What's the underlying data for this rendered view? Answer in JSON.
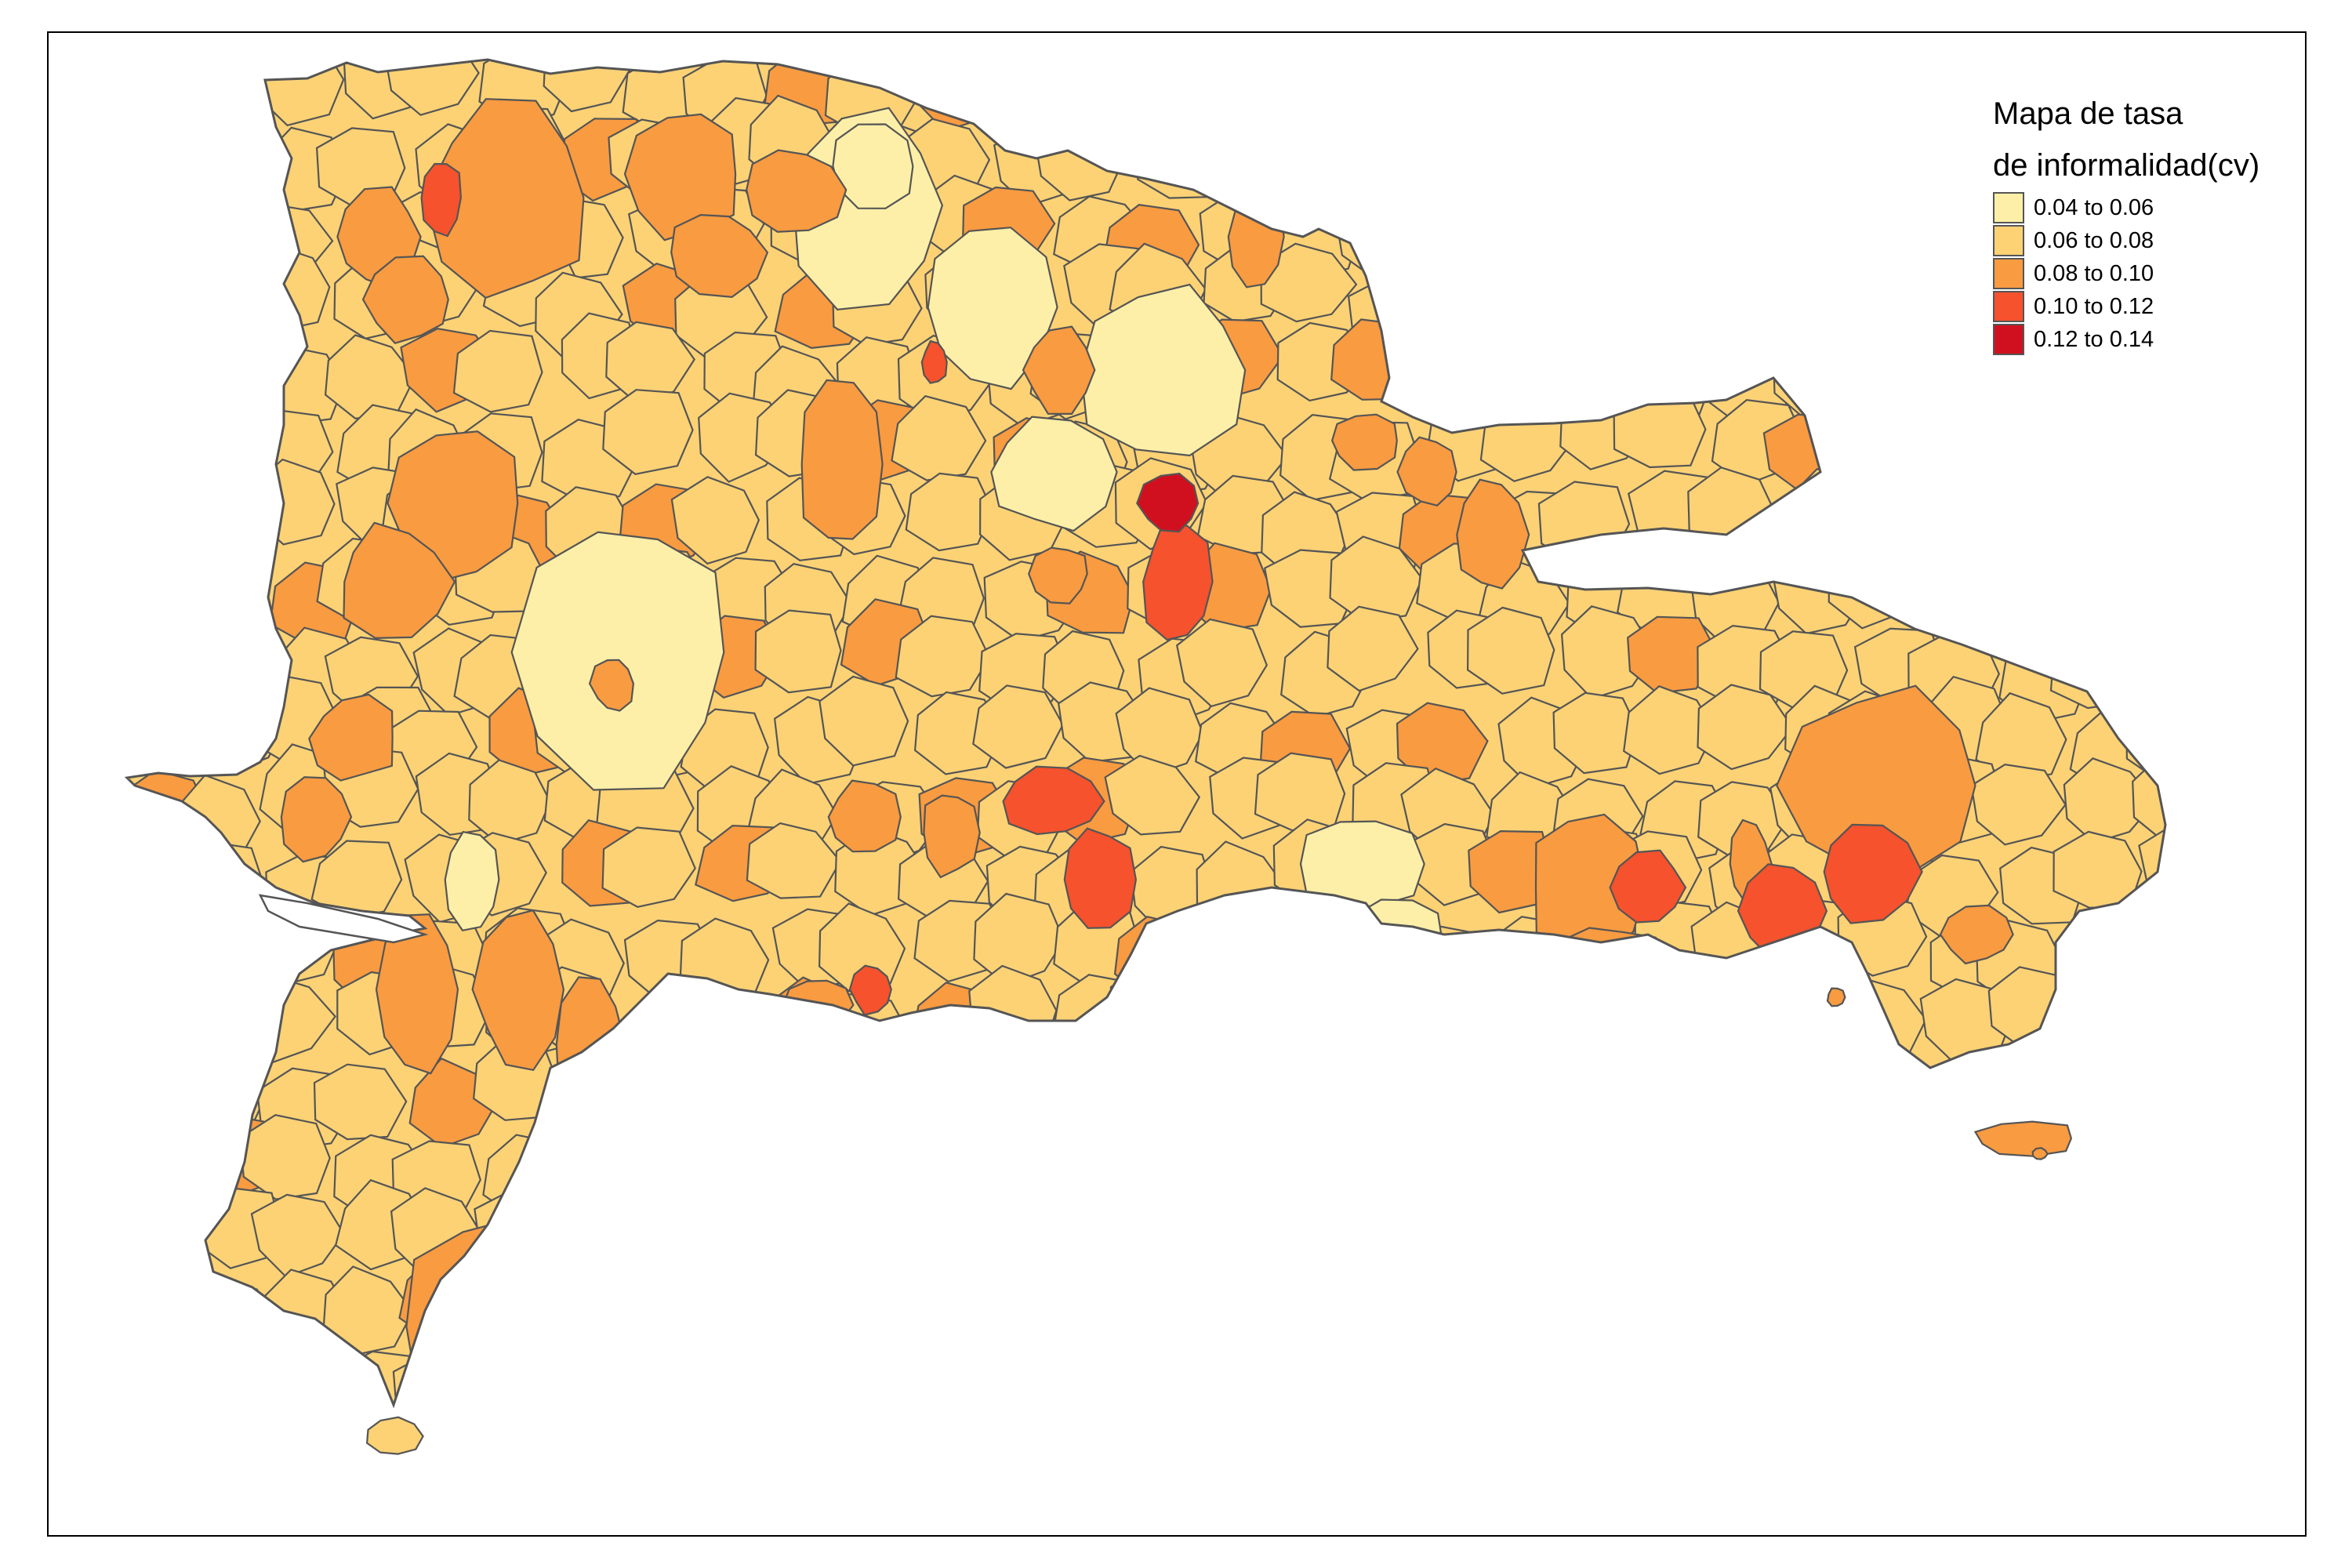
{
  "map": {
    "legend": {
      "title_line1": "Mapa de tasa",
      "title_line2": "de informalidad(cv)",
      "classes": [
        {
          "label": "0.04 to 0.06",
          "color": "#FDEFA8"
        },
        {
          "label": "0.06 to 0.08",
          "color": "#FCD275"
        },
        {
          "label": "0.08 to 0.10",
          "color": "#F99B41"
        },
        {
          "label": "0.10 to 0.12",
          "color": "#F5522D"
        },
        {
          "label": "0.12 to 0.14",
          "color": "#D1101F"
        }
      ]
    },
    "border_color": "#555555",
    "water_color": "#ffffff"
  }
}
